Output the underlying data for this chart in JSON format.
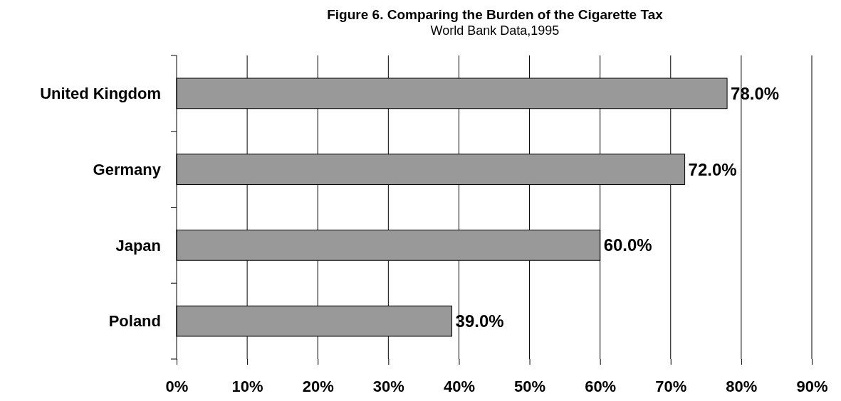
{
  "chart_data": {
    "type": "bar",
    "orientation": "horizontal",
    "title": "Figure 6.  Comparing the Burden of the Cigarette Tax",
    "subtitle": "World Bank Data,1995",
    "categories": [
      "United Kingdom",
      "Germany",
      "Japan",
      "Poland"
    ],
    "values": [
      78,
      72,
      60,
      39
    ],
    "color": "#999999",
    "value_labels": [
      "78.0%",
      "72.0%",
      "60.0%",
      "39.0%"
    ],
    "xlim": [
      0,
      90
    ],
    "xticks": [
      {
        "value": 0,
        "label": "0%"
      },
      {
        "value": 10,
        "label": "10%"
      },
      {
        "value": 20,
        "label": "20%"
      },
      {
        "value": 30,
        "label": "30%"
      },
      {
        "value": 40,
        "label": "40%"
      },
      {
        "value": 50,
        "label": "50%"
      },
      {
        "value": 60,
        "label": "60%"
      },
      {
        "value": 70,
        "label": "70%"
      },
      {
        "value": 80,
        "label": "80%"
      },
      {
        "value": 90,
        "label": "90%"
      }
    ],
    "grid": "x"
  }
}
